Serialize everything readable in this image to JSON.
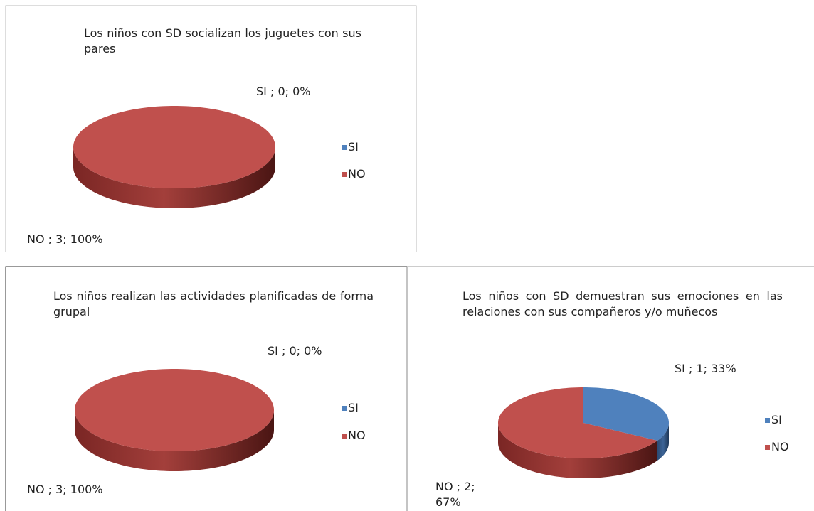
{
  "chart_data": [
    {
      "type": "pie3d",
      "title": "Los niños con SD socializan los juguetes con sus pares",
      "categories": [
        "SI",
        "NO"
      ],
      "values": [
        0,
        3
      ],
      "value_labels": [
        "SI ; 0; 0%",
        "NO ; 3; 100%"
      ],
      "colors": [
        "#4f81bd",
        "#c0504d"
      ],
      "legend": "right"
    },
    {
      "type": "pie3d",
      "title": "Los niños realizan las actividades planificadas de forma grupal",
      "categories": [
        "SI",
        "NO"
      ],
      "values": [
        0,
        3
      ],
      "value_labels": [
        "SI ; 0; 0%",
        "NO ; 3; 100%"
      ],
      "colors": [
        "#4f81bd",
        "#c0504d"
      ],
      "legend": "right"
    },
    {
      "type": "pie3d",
      "title": "Los niños con SD demuestran sus emociones en las relaciones con sus compañeros y/o muñecos",
      "categories": [
        "SI",
        "NO"
      ],
      "values": [
        1,
        2
      ],
      "value_labels": [
        "SI ; 1; 33%",
        "NO ; 2; 67%"
      ],
      "colors": [
        "#4f81bd",
        "#c0504d"
      ],
      "legend": "right"
    }
  ]
}
